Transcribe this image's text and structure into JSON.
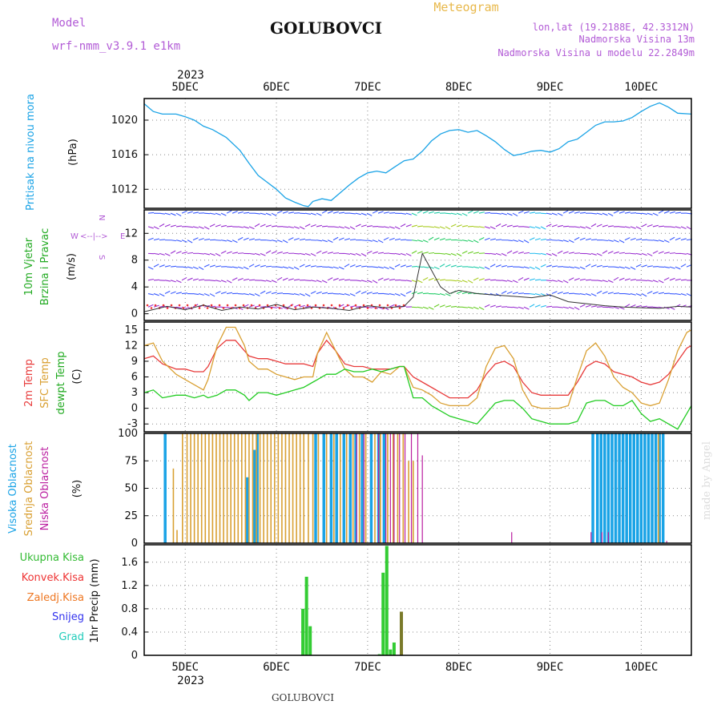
{
  "header": {
    "model_label": "Model",
    "model_name": "wrf-nmm_v3.9.1  e1km",
    "location": "GOLUBOVCI",
    "title": "Meteogram",
    "lonlat": "lon,lat (19.2188E, 42.3312N)",
    "elevation": "Nadmorska Visina 13m",
    "elevation_model": "Nadmorska Visina u modelu 22.2849m",
    "footer": "GOLUBOVCI",
    "watermark": "made by Angel"
  },
  "colors": {
    "pressure": "#1aa3e6",
    "temp2m": "#e83c3c",
    "sfc_temp": "#d9a033",
    "dewpt": "#22cc22",
    "high_cloud": "#1aa3e6",
    "mid_cloud": "#d9a033",
    "low_cloud": "#bb1ea0",
    "purple_text": "#b25bd6",
    "total_precip": "#33cc33",
    "convective": "#ee3333",
    "frozen": "#ee7722",
    "snow": "#3333ee",
    "hail": "#22ccbb"
  },
  "time_axis": {
    "year": "2023",
    "days": [
      "5DEC",
      "6DEC",
      "7DEC",
      "8DEC",
      "9DEC",
      "10DEC"
    ],
    "day_positions": [
      1,
      2,
      3,
      4,
      5,
      6
    ],
    "range": [
      0.55,
      6.55
    ]
  },
  "chart_data": [
    {
      "type": "line",
      "name": "pressure",
      "ylabel": "Pritisak na nivou mora",
      "unit": "(hPa)",
      "yticks": [
        1012,
        1016,
        1020
      ],
      "ylim": [
        1009.8,
        1022.5
      ],
      "x": [
        0.55,
        0.65,
        0.75,
        0.9,
        1.0,
        1.1,
        1.2,
        1.3,
        1.45,
        1.6,
        1.7,
        1.8,
        1.9,
        2.0,
        2.1,
        2.2,
        2.3,
        2.35,
        2.4,
        2.5,
        2.6,
        2.7,
        2.8,
        2.9,
        3.0,
        3.1,
        3.2,
        3.3,
        3.4,
        3.5,
        3.6,
        3.7,
        3.8,
        3.9,
        4.0,
        4.1,
        4.2,
        4.3,
        4.4,
        4.5,
        4.6,
        4.7,
        4.8,
        4.9,
        5.0,
        5.1,
        5.2,
        5.3,
        5.4,
        5.5,
        5.6,
        5.7,
        5.8,
        5.9,
        6.0,
        6.1,
        6.2,
        6.3,
        6.4,
        6.55
      ],
      "values": [
        1021.9,
        1021.0,
        1020.7,
        1020.7,
        1020.4,
        1020.0,
        1019.3,
        1018.9,
        1018.0,
        1016.5,
        1015.0,
        1013.6,
        1012.8,
        1012.0,
        1011.0,
        1010.5,
        1010.1,
        1010.0,
        1010.6,
        1010.9,
        1010.7,
        1011.6,
        1012.5,
        1013.3,
        1013.9,
        1014.1,
        1013.9,
        1014.6,
        1015.3,
        1015.5,
        1016.4,
        1017.6,
        1018.4,
        1018.8,
        1018.9,
        1018.6,
        1018.8,
        1018.2,
        1017.5,
        1016.6,
        1015.9,
        1016.1,
        1016.4,
        1016.5,
        1016.3,
        1016.7,
        1017.5,
        1017.8,
        1018.6,
        1019.4,
        1019.8,
        1019.8,
        1019.9,
        1020.3,
        1021.0,
        1021.6,
        1022.0,
        1021.5,
        1020.8,
        1020.7
      ]
    },
    {
      "type": "line",
      "name": "wind",
      "ylabel": "10m Vjetar Brzina i Pravac",
      "unit": "(m/s)",
      "compass": [
        "N",
        "E",
        "S",
        "W"
      ],
      "compass_arrows": "<--|-->",
      "yticks": [
        0,
        4,
        8,
        12
      ],
      "ylim": [
        -1,
        15.5
      ],
      "x": [
        0.55,
        0.8,
        1.0,
        1.2,
        1.4,
        1.6,
        1.8,
        2.0,
        2.2,
        2.4,
        2.6,
        2.8,
        3.0,
        3.2,
        3.4,
        3.5,
        3.6,
        3.7,
        3.8,
        3.9,
        4.0,
        4.2,
        4.4,
        4.6,
        4.8,
        5.0,
        5.2,
        5.4,
        5.6,
        5.8,
        6.0,
        6.2,
        6.4,
        6.55
      ],
      "values": [
        0.3,
        1.1,
        0.6,
        1.3,
        0.5,
        1.0,
        0.7,
        1.4,
        0.6,
        1.0,
        0.8,
        0.5,
        1.2,
        0.9,
        1.1,
        2.5,
        9.0,
        6.5,
        4.0,
        3.0,
        3.5,
        3.0,
        2.8,
        2.6,
        2.4,
        2.8,
        1.8,
        1.5,
        1.2,
        1.0,
        0.9,
        0.8,
        1.1,
        1.0
      ]
    },
    {
      "type": "line",
      "name": "temperature",
      "ylabel": "2m Temp / SFC Temp / dewpt Temp",
      "unit": "(C)",
      "yticks": [
        -3,
        0,
        3,
        6,
        9,
        12,
        15
      ],
      "ylim": [
        -4.5,
        16.5
      ],
      "x": [
        0.55,
        0.65,
        0.75,
        0.9,
        1.0,
        1.1,
        1.2,
        1.25,
        1.35,
        1.45,
        1.55,
        1.65,
        1.7,
        1.8,
        1.9,
        2.0,
        2.1,
        2.2,
        2.3,
        2.4,
        2.45,
        2.55,
        2.65,
        2.75,
        2.85,
        2.95,
        3.05,
        3.15,
        3.25,
        3.35,
        3.4,
        3.5,
        3.6,
        3.7,
        3.8,
        3.9,
        4.0,
        4.1,
        4.2,
        4.3,
        4.4,
        4.5,
        4.6,
        4.7,
        4.8,
        4.9,
        5.0,
        5.1,
        5.2,
        5.3,
        5.4,
        5.5,
        5.6,
        5.7,
        5.8,
        5.9,
        6.0,
        6.1,
        6.2,
        6.3,
        6.4,
        6.5,
        6.55
      ],
      "series": [
        {
          "name": "2m Temp",
          "values": [
            9.5,
            10.0,
            8.5,
            7.5,
            7.5,
            7.0,
            7.0,
            8.0,
            11.5,
            13.0,
            13.0,
            11.0,
            10.0,
            9.5,
            9.5,
            9.0,
            8.5,
            8.5,
            8.5,
            8.0,
            10.5,
            13.0,
            11.0,
            8.5,
            8.0,
            8.0,
            7.5,
            7.5,
            7.5,
            8.0,
            8.0,
            6.0,
            5.0,
            4.0,
            3.0,
            2.0,
            2.0,
            2.0,
            3.5,
            6.5,
            8.5,
            9.0,
            8.0,
            5.0,
            3.0,
            2.5,
            2.5,
            2.5,
            2.5,
            5.0,
            8.0,
            9.0,
            8.5,
            7.0,
            6.5,
            6.0,
            5.0,
            4.5,
            5.0,
            6.5,
            9.0,
            11.5,
            12.0
          ]
        },
        {
          "name": "SFC Temp",
          "values": [
            12.0,
            12.5,
            9.0,
            6.5,
            5.5,
            4.5,
            3.5,
            5.5,
            12.0,
            15.5,
            15.5,
            12.0,
            9.0,
            7.5,
            7.5,
            6.5,
            6.0,
            5.5,
            6.0,
            6.0,
            10.5,
            14.5,
            11.0,
            7.5,
            6.0,
            6.0,
            5.0,
            7.0,
            6.5,
            8.0,
            8.0,
            4.0,
            3.5,
            2.5,
            1.0,
            0.5,
            0.5,
            0.5,
            2.0,
            8.0,
            11.5,
            12.0,
            9.5,
            3.5,
            0.5,
            0.0,
            0.0,
            0.0,
            0.5,
            6.0,
            11.0,
            12.5,
            10.0,
            6.0,
            4.0,
            3.0,
            1.0,
            0.5,
            1.0,
            5.5,
            11.0,
            14.5,
            15.0
          ]
        },
        {
          "name": "dewpt Temp",
          "values": [
            3.0,
            3.5,
            2.0,
            2.5,
            2.5,
            2.0,
            2.5,
            2.0,
            2.5,
            3.5,
            3.5,
            2.5,
            1.5,
            3.0,
            3.0,
            2.5,
            3.0,
            3.5,
            4.0,
            5.0,
            5.5,
            6.5,
            6.5,
            7.5,
            7.0,
            7.0,
            7.5,
            7.0,
            7.5,
            8.0,
            8.0,
            2.0,
            2.0,
            0.5,
            -0.5,
            -1.5,
            -2.0,
            -2.5,
            -3.0,
            -1.0,
            1.0,
            1.5,
            1.5,
            0.0,
            -2.0,
            -2.5,
            -3.0,
            -3.0,
            -3.0,
            -2.5,
            1.0,
            1.5,
            1.5,
            0.5,
            0.5,
            1.5,
            -1.0,
            -2.5,
            -2.0,
            -3.0,
            -4.0,
            -1.0,
            0.5
          ]
        }
      ]
    },
    {
      "type": "bar",
      "name": "cloud cover",
      "ylabel": "Visoka Oblacnost / Srednja Oblacnost / Niska Oblacnost",
      "unit": "(%)",
      "yticks": [
        0,
        25,
        50,
        75,
        100
      ],
      "ylim": [
        0,
        100
      ],
      "series": [
        {
          "name": "Visoka Oblacnost",
          "x": [
            0.78,
            1.68,
            1.76,
            1.79,
            2.43,
            2.52,
            2.6,
            2.66,
            2.74,
            2.81,
            2.87,
            2.94,
            3.04,
            3.12,
            3.18,
            5.47,
            5.52,
            5.56,
            5.6,
            5.64,
            5.68,
            5.72,
            5.76,
            5.8,
            5.84,
            5.88,
            5.92,
            5.96,
            6.0,
            6.04,
            6.08,
            6.12,
            6.16,
            6.2,
            6.24
          ],
          "values": [
            100,
            60,
            85,
            100,
            100,
            100,
            100,
            100,
            100,
            100,
            100,
            100,
            100,
            100,
            100,
            100,
            100,
            100,
            100,
            100,
            100,
            100,
            100,
            100,
            100,
            100,
            100,
            100,
            100,
            100,
            100,
            100,
            100,
            100,
            100
          ]
        },
        {
          "name": "Srednja Oblacnost",
          "x": [
            0.87,
            0.91,
            0.97,
            1.02,
            1.06,
            1.1,
            1.14,
            1.18,
            1.22,
            1.26,
            1.3,
            1.34,
            1.38,
            1.42,
            1.46,
            1.5,
            1.54,
            1.58,
            1.62,
            1.66,
            1.7,
            1.74,
            1.78,
            1.82,
            1.86,
            1.9,
            1.94,
            1.98,
            2.02,
            2.06,
            2.1,
            2.14,
            2.18,
            2.22,
            2.26,
            2.3,
            2.35,
            2.4,
            2.46,
            2.55,
            2.63,
            2.7,
            2.77,
            2.84,
            2.91,
            2.98,
            3.08,
            3.14,
            3.22,
            3.28,
            3.33,
            3.39,
            3.45,
            3.5,
            6.19
          ],
          "values": [
            68,
            12,
            100,
            100,
            100,
            100,
            100,
            100,
            100,
            100,
            100,
            100,
            100,
            100,
            100,
            100,
            100,
            100,
            100,
            100,
            100,
            100,
            100,
            100,
            100,
            100,
            100,
            100,
            100,
            100,
            100,
            100,
            100,
            100,
            100,
            100,
            100,
            100,
            100,
            100,
            100,
            100,
            100,
            100,
            100,
            100,
            100,
            100,
            100,
            100,
            100,
            100,
            75,
            75,
            100
          ]
        },
        {
          "name": "Niska Oblacnost",
          "x": [
            2.88,
            2.96,
            3.12,
            3.2,
            3.25,
            3.29,
            3.35,
            3.41,
            3.48,
            3.55,
            3.6,
            4.58,
            5.45,
            5.57,
            5.64,
            6.28
          ],
          "values": [
            100,
            100,
            100,
            100,
            100,
            100,
            100,
            100,
            100,
            100,
            80,
            10,
            10,
            10,
            10,
            2
          ]
        }
      ]
    },
    {
      "type": "bar",
      "name": "precipitation",
      "ylabel": "1hr Precip (mm)",
      "legend": [
        "Ukupna Kisa",
        "Konvek.Kisa",
        "Zaledj.Kisa",
        "Snijeg",
        "Grad"
      ],
      "yticks": [
        0,
        0.4,
        0.8,
        1.2,
        1.6
      ],
      "ylim": [
        0,
        1.9
      ],
      "series": [
        {
          "name": "Ukupna Kisa",
          "x": [
            2.29,
            2.33,
            2.37,
            3.13,
            3.17,
            3.21,
            3.25,
            3.29,
            3.37
          ],
          "values": [
            0.8,
            1.35,
            0.5,
            0.02,
            1.42,
            1.88,
            0.1,
            0.22,
            0.75
          ]
        }
      ]
    }
  ]
}
